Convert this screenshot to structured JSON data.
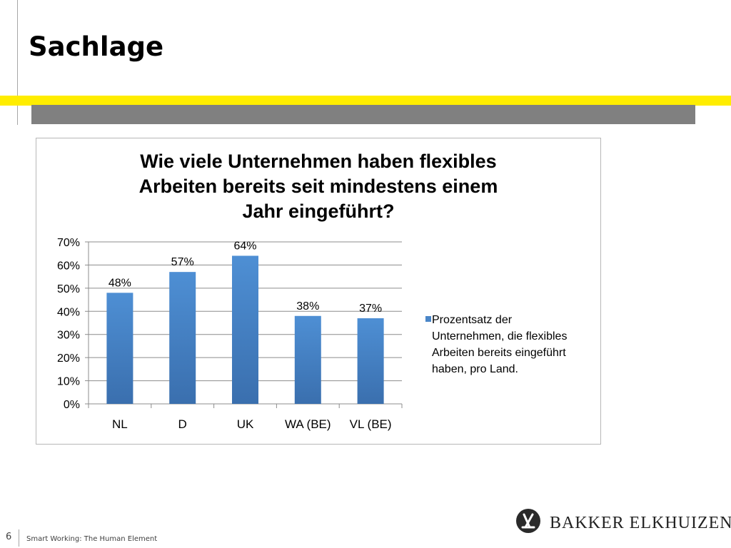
{
  "slide": {
    "title": "Sachlage",
    "page_number": "6",
    "footer": "Smart Working: The Human Element",
    "logo_text": "BAKKER ELKHUIZEN",
    "colors": {
      "accent_yellow": "#ffed00",
      "band_gray": "#808080",
      "bar_blue": "#4a86c8"
    }
  },
  "chart_data": {
    "type": "bar",
    "title_lines": [
      "Wie viele Unternehmen haben flexibles",
      "Arbeiten bereits seit mindestens einem",
      "Jahr eingeführt?"
    ],
    "categories": [
      "NL",
      "D",
      "UK",
      "WA (BE)",
      "VL (BE)"
    ],
    "series": [
      {
        "name": "Prozentsatz der Unternehmen, die flexibles Arbeiten bereits eingeführt haben, pro Land.",
        "values": [
          48,
          57,
          64,
          38,
          37
        ]
      }
    ],
    "data_labels": [
      "48%",
      "57%",
      "64%",
      "38%",
      "37%"
    ],
    "y_ticks": [
      "0%",
      "10%",
      "20%",
      "30%",
      "40%",
      "50%",
      "60%",
      "70%"
    ],
    "ylim": [
      0,
      70
    ],
    "grid": true,
    "legend_position": "right",
    "legend_lines": [
      "Prozentsatz der",
      "Unternehmen, die flexibles",
      "Arbeiten bereits eingeführt",
      "haben, pro Land."
    ]
  }
}
